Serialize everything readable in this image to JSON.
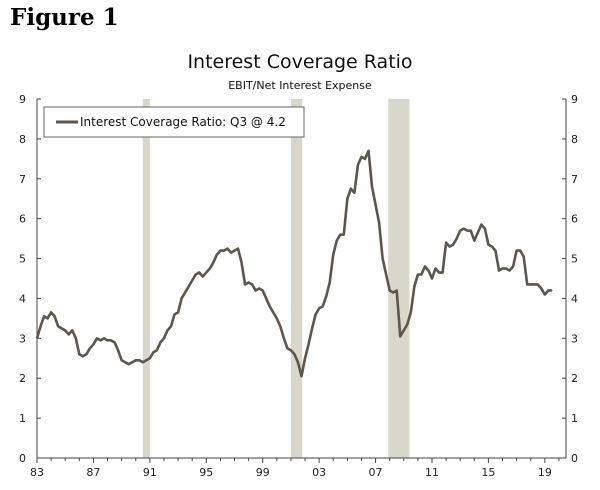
{
  "figure_label": "Figure 1",
  "chart_data": {
    "type": "line",
    "title": "Interest Coverage Ratio",
    "subtitle": "EBIT/Net Interest Expense",
    "legend": "Interest Coverage Ratio: Q3 @ 4.2",
    "legend_position": "top-left",
    "xlim": [
      1983,
      2020.5
    ],
    "ylim": [
      0,
      9
    ],
    "x_ticks": [
      1983,
      1987,
      1991,
      1995,
      1999,
      2003,
      2007,
      2011,
      2015,
      2019
    ],
    "x_tick_labels": [
      "83",
      "87",
      "91",
      "95",
      "99",
      "03",
      "07",
      "11",
      "15",
      "19"
    ],
    "y_ticks": [
      0,
      1,
      2,
      3,
      4,
      5,
      6,
      7,
      8,
      9
    ],
    "y_tick_labels": [
      "0",
      "1",
      "2",
      "3",
      "4",
      "5",
      "6",
      "7",
      "8",
      "9"
    ],
    "recessions": [
      [
        1990.5,
        1991.0
      ],
      [
        2001.0,
        2001.8
      ],
      [
        2007.9,
        2009.4
      ]
    ],
    "colors": {
      "line": "#5e554c",
      "recession": "#d9d6cc",
      "axis": "#444444"
    },
    "series": [
      {
        "name": "Interest Coverage Ratio",
        "x": [
          1983.0,
          1983.25,
          1983.5,
          1983.75,
          1984.0,
          1984.25,
          1984.5,
          1984.75,
          1985.0,
          1985.25,
          1985.5,
          1985.75,
          1986.0,
          1986.25,
          1986.5,
          1986.75,
          1987.0,
          1987.25,
          1987.5,
          1987.75,
          1988.0,
          1988.25,
          1988.5,
          1988.75,
          1989.0,
          1989.25,
          1989.5,
          1989.75,
          1990.0,
          1990.25,
          1990.5,
          1990.75,
          1991.0,
          1991.25,
          1991.5,
          1991.75,
          1992.0,
          1992.25,
          1992.5,
          1992.75,
          1993.0,
          1993.25,
          1993.5,
          1993.75,
          1994.0,
          1994.25,
          1994.5,
          1994.75,
          1995.0,
          1995.25,
          1995.5,
          1995.75,
          1996.0,
          1996.25,
          1996.5,
          1996.75,
          1997.0,
          1997.25,
          1997.5,
          1997.75,
          1998.0,
          1998.25,
          1998.5,
          1998.75,
          1999.0,
          1999.25,
          1999.5,
          1999.75,
          2000.0,
          2000.25,
          2000.5,
          2000.75,
          2001.0,
          2001.25,
          2001.5,
          2001.75,
          2002.0,
          2002.25,
          2002.5,
          2002.75,
          2003.0,
          2003.25,
          2003.5,
          2003.75,
          2004.0,
          2004.25,
          2004.5,
          2004.75,
          2005.0,
          2005.25,
          2005.5,
          2005.75,
          2006.0,
          2006.25,
          2006.5,
          2006.75,
          2007.0,
          2007.25,
          2007.5,
          2007.75,
          2008.0,
          2008.25,
          2008.5,
          2008.75,
          2009.0,
          2009.25,
          2009.5,
          2009.75,
          2010.0,
          2010.25,
          2010.5,
          2010.75,
          2011.0,
          2011.25,
          2011.5,
          2011.75,
          2012.0,
          2012.25,
          2012.5,
          2012.75,
          2013.0,
          2013.25,
          2013.5,
          2013.75,
          2014.0,
          2014.25,
          2014.5,
          2014.75,
          2015.0,
          2015.25,
          2015.5,
          2015.75,
          2016.0,
          2016.25,
          2016.5,
          2016.75,
          2017.0,
          2017.25,
          2017.5,
          2017.75,
          2018.0,
          2018.25,
          2018.5,
          2018.75,
          2019.0,
          2019.25,
          2019.5
        ],
        "values": [
          3.0,
          3.3,
          3.55,
          3.5,
          3.65,
          3.55,
          3.3,
          3.25,
          3.2,
          3.1,
          3.2,
          3.0,
          2.6,
          2.55,
          2.6,
          2.75,
          2.85,
          3.0,
          2.95,
          3.0,
          2.95,
          2.95,
          2.9,
          2.7,
          2.45,
          2.4,
          2.35,
          2.4,
          2.45,
          2.45,
          2.4,
          2.45,
          2.5,
          2.65,
          2.7,
          2.9,
          3.0,
          3.2,
          3.3,
          3.6,
          3.65,
          4.0,
          4.15,
          4.3,
          4.45,
          4.6,
          4.65,
          4.55,
          4.65,
          4.75,
          4.9,
          5.1,
          5.2,
          5.2,
          5.25,
          5.15,
          5.2,
          5.25,
          4.9,
          4.35,
          4.4,
          4.35,
          4.2,
          4.25,
          4.2,
          4.0,
          3.8,
          3.65,
          3.5,
          3.3,
          3.0,
          2.75,
          2.7,
          2.6,
          2.4,
          2.05,
          2.5,
          2.85,
          3.25,
          3.6,
          3.75,
          3.8,
          4.05,
          4.4,
          5.1,
          5.45,
          5.6,
          5.6,
          6.5,
          6.75,
          6.65,
          7.35,
          7.55,
          7.5,
          7.7,
          6.8,
          6.35,
          5.9,
          5.0,
          4.6,
          4.2,
          4.15,
          4.2,
          3.05,
          3.2,
          3.35,
          3.65,
          4.3,
          4.6,
          4.6,
          4.8,
          4.7,
          4.5,
          4.75,
          4.65,
          4.65,
          5.4,
          5.3,
          5.35,
          5.5,
          5.7,
          5.75,
          5.7,
          5.7,
          5.45,
          5.65,
          5.85,
          5.75,
          5.35,
          5.3,
          5.2,
          4.7,
          4.75,
          4.75,
          4.7,
          4.8,
          5.2,
          5.2,
          5.05,
          4.35,
          4.35,
          4.35,
          4.35,
          4.25,
          4.1,
          4.2,
          4.2
        ]
      }
    ]
  }
}
